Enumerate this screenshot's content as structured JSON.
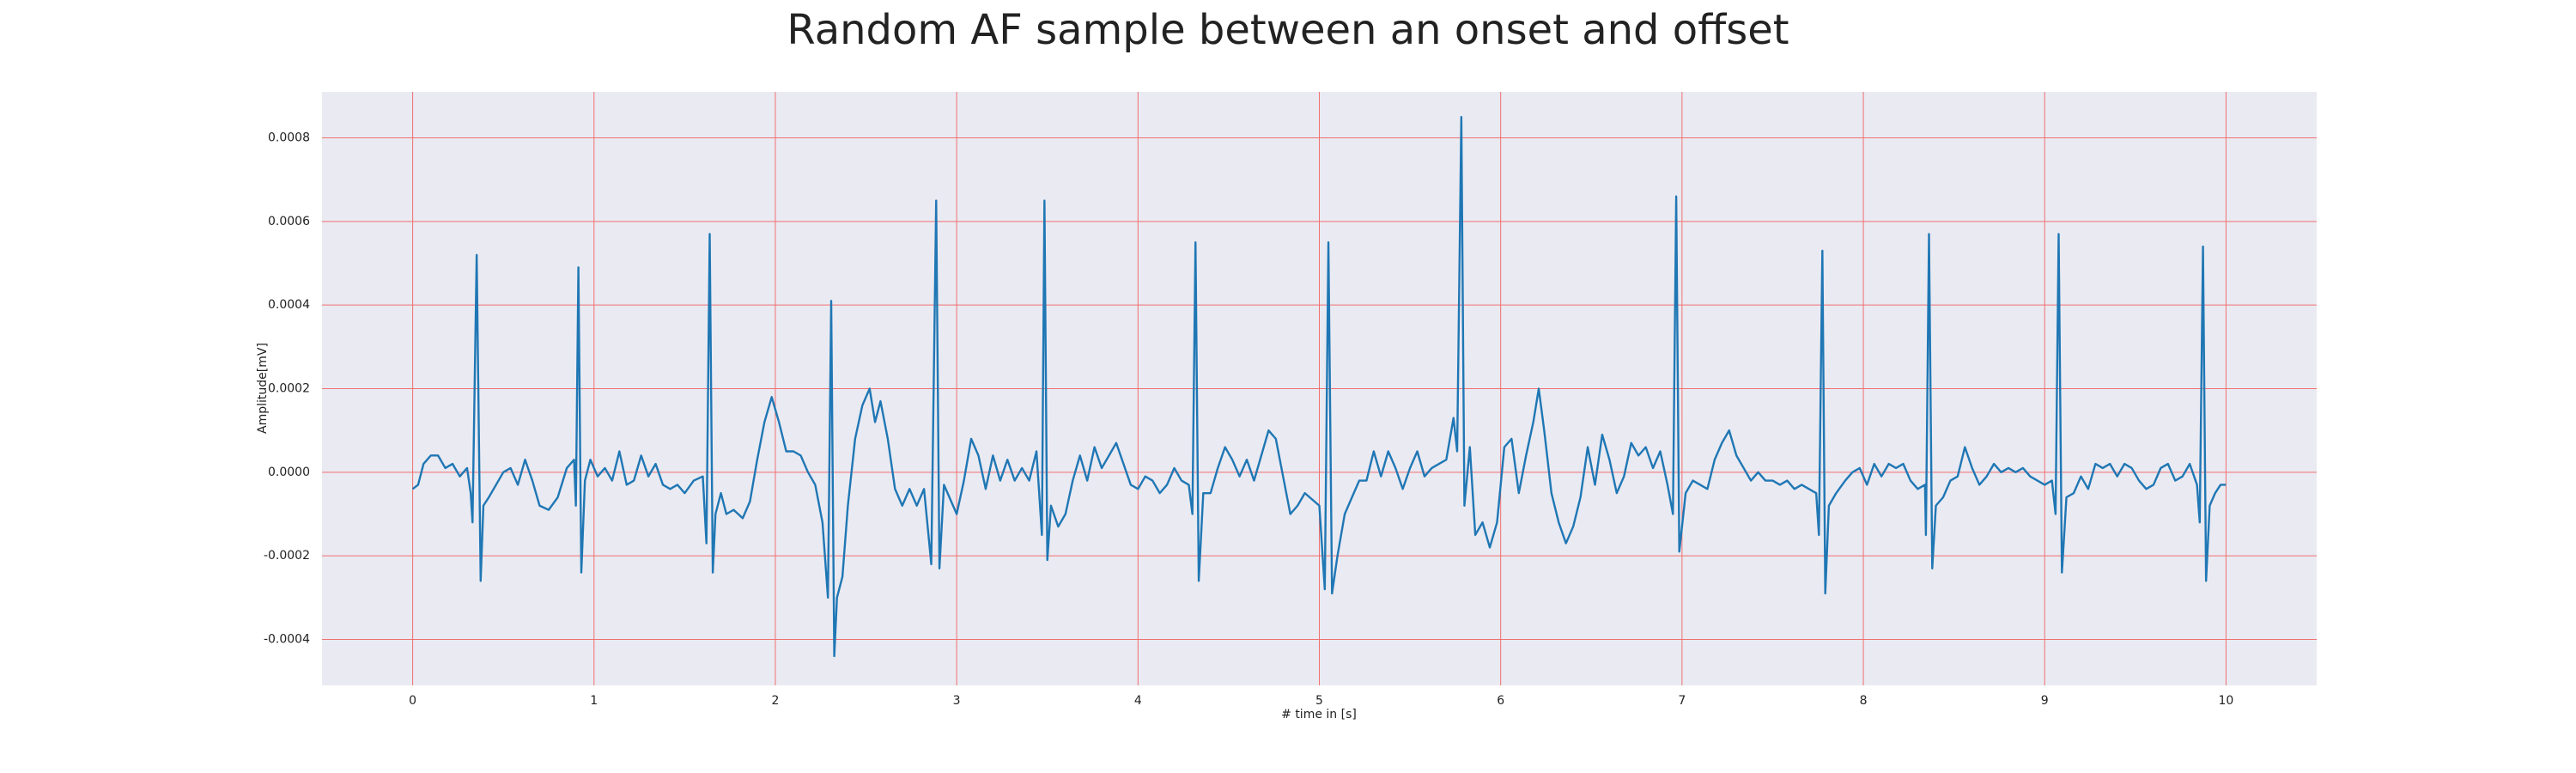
{
  "chart_data": {
    "type": "line",
    "title": "Random AF sample between an onset and offset",
    "xlabel": "# time in [s]",
    "ylabel": "Amplitude[mV]",
    "color": "#1f77b4",
    "grid": true,
    "grid_color": "#f07070",
    "background": "#eaeaf2",
    "xlim": [
      -0.5,
      10.5
    ],
    "xticks": [
      0,
      1,
      2,
      3,
      4,
      5,
      6,
      7,
      8,
      9,
      10
    ],
    "ylim": [
      -0.00051,
      0.00091
    ],
    "yticks": [
      -0.0004,
      -0.0002,
      {
        "value": 0,
        "label": "0.0000"
      },
      0.0002,
      0.0004,
      0.0006,
      0.0008
    ],
    "x": [
      0.0,
      0.03,
      0.06,
      0.1,
      0.14,
      0.18,
      0.22,
      0.26,
      0.3,
      0.32,
      0.33,
      0.353,
      0.375,
      0.39,
      0.42,
      0.46,
      0.5,
      0.54,
      0.58,
      0.62,
      0.66,
      0.7,
      0.75,
      0.8,
      0.85,
      0.89,
      0.9,
      0.914,
      0.93,
      0.95,
      0.98,
      1.02,
      1.06,
      1.1,
      1.14,
      1.18,
      1.22,
      1.26,
      1.3,
      1.34,
      1.38,
      1.42,
      1.46,
      1.5,
      1.55,
      1.6,
      1.62,
      1.638,
      1.655,
      1.67,
      1.7,
      1.73,
      1.77,
      1.82,
      1.86,
      1.9,
      1.94,
      1.98,
      2.02,
      2.06,
      2.1,
      2.14,
      2.18,
      2.22,
      2.26,
      2.29,
      2.308,
      2.325,
      2.34,
      2.37,
      2.4,
      2.44,
      2.48,
      2.52,
      2.55,
      2.58,
      2.62,
      2.66,
      2.7,
      2.74,
      2.78,
      2.82,
      2.86,
      2.887,
      2.905,
      2.93,
      2.96,
      3.0,
      3.04,
      3.08,
      3.12,
      3.16,
      3.2,
      3.24,
      3.28,
      3.32,
      3.36,
      3.4,
      3.44,
      3.47,
      3.484,
      3.5,
      3.52,
      3.56,
      3.6,
      3.64,
      3.68,
      3.72,
      3.76,
      3.8,
      3.84,
      3.88,
      3.92,
      3.96,
      4.0,
      4.04,
      4.08,
      4.12,
      4.16,
      4.2,
      4.24,
      4.28,
      4.3,
      4.317,
      4.335,
      4.36,
      4.4,
      4.44,
      4.48,
      4.52,
      4.56,
      4.6,
      4.64,
      4.68,
      4.72,
      4.76,
      4.8,
      4.84,
      4.88,
      4.92,
      5.0,
      5.03,
      5.05,
      5.07,
      5.1,
      5.14,
      5.18,
      5.22,
      5.26,
      5.3,
      5.34,
      5.38,
      5.42,
      5.46,
      5.5,
      5.54,
      5.58,
      5.62,
      5.66,
      5.7,
      5.74,
      5.76,
      5.783,
      5.8,
      5.83,
      5.86,
      5.9,
      5.94,
      5.98,
      6.02,
      6.06,
      6.1,
      6.14,
      6.18,
      6.21,
      6.24,
      6.28,
      6.32,
      6.36,
      6.4,
      6.44,
      6.48,
      6.52,
      6.56,
      6.6,
      6.64,
      6.68,
      6.72,
      6.76,
      6.8,
      6.84,
      6.88,
      6.92,
      6.95,
      6.968,
      6.985,
      7.02,
      7.06,
      7.1,
      7.14,
      7.18,
      7.22,
      7.26,
      7.3,
      7.34,
      7.38,
      7.42,
      7.46,
      7.5,
      7.54,
      7.58,
      7.62,
      7.66,
      7.7,
      7.74,
      7.755,
      7.774,
      7.79,
      7.81,
      7.85,
      7.9,
      7.94,
      7.98,
      8.02,
      8.06,
      8.1,
      8.14,
      8.18,
      8.22,
      8.26,
      8.3,
      8.34,
      8.345,
      8.362,
      8.38,
      8.4,
      8.44,
      8.48,
      8.52,
      8.56,
      8.6,
      8.64,
      8.68,
      8.72,
      8.76,
      8.8,
      8.84,
      8.88,
      8.92,
      8.96,
      9.0,
      9.04,
      9.06,
      9.077,
      9.095,
      9.12,
      9.16,
      9.2,
      9.24,
      9.28,
      9.32,
      9.36,
      9.4,
      9.44,
      9.48,
      9.52,
      9.56,
      9.6,
      9.64,
      9.68,
      9.72,
      9.76,
      9.8,
      9.84,
      9.855,
      9.873,
      9.89,
      9.91,
      9.94,
      9.97,
      10.0
    ],
    "values": [
      -4e-05,
      -3e-05,
      2e-05,
      4e-05,
      4e-05,
      1e-05,
      2e-05,
      -1e-05,
      1e-05,
      -5e-05,
      -0.00012,
      0.00052,
      -0.00026,
      -8e-05,
      -6e-05,
      -3e-05,
      0,
      1e-05,
      -3e-05,
      3e-05,
      -2e-05,
      -8e-05,
      -9e-05,
      -6e-05,
      1e-05,
      3e-05,
      -8e-05,
      0.00049,
      -0.00024,
      -2e-05,
      3e-05,
      -1e-05,
      1e-05,
      -2e-05,
      5e-05,
      -3e-05,
      -2e-05,
      4e-05,
      -1e-05,
      2e-05,
      -3e-05,
      -4e-05,
      -3e-05,
      -5e-05,
      -2e-05,
      -1e-05,
      -0.00017,
      0.00057,
      -0.00024,
      -0.0001,
      -5e-05,
      -0.0001,
      -9e-05,
      -0.00011,
      -7e-05,
      3e-05,
      0.00012,
      0.00018,
      0.00012,
      5e-05,
      5e-05,
      4e-05,
      0,
      -3e-05,
      -0.00012,
      -0.0003,
      0.00041,
      -0.00044,
      -0.0003,
      -0.00025,
      -8e-05,
      8e-05,
      0.00016,
      0.0002,
      0.00012,
      0.00017,
      8e-05,
      -4e-05,
      -8e-05,
      -4e-05,
      -8e-05,
      -4e-05,
      -0.00022,
      0.00065,
      -0.00023,
      -3e-05,
      -6e-05,
      -0.0001,
      -2e-05,
      8e-05,
      4e-05,
      -4e-05,
      4e-05,
      -2e-05,
      3e-05,
      -2e-05,
      1e-05,
      -2e-05,
      5e-05,
      -0.00015,
      0.00065,
      -0.00021,
      -8e-05,
      -0.00013,
      -0.0001,
      -2e-05,
      4e-05,
      -2e-05,
      6e-05,
      1e-05,
      4e-05,
      7e-05,
      2e-05,
      -3e-05,
      -4e-05,
      -1e-05,
      -2e-05,
      -5e-05,
      -3e-05,
      1e-05,
      -2e-05,
      -3e-05,
      -0.0001,
      0.00055,
      -0.00026,
      -5e-05,
      -5e-05,
      1e-05,
      6e-05,
      3e-05,
      -1e-05,
      3e-05,
      -2e-05,
      4e-05,
      0.0001,
      8e-05,
      -1e-05,
      -0.0001,
      -8e-05,
      -5e-05,
      -8e-05,
      -0.00028,
      0.00055,
      -0.00029,
      -0.0002,
      -0.0001,
      -6e-05,
      -2e-05,
      -2e-05,
      5e-05,
      -1e-05,
      5e-05,
      1e-05,
      -4e-05,
      1e-05,
      5e-05,
      -1e-05,
      1e-05,
      2e-05,
      3e-05,
      0.00013,
      5e-05,
      0.00085,
      -8e-05,
      6e-05,
      -0.00015,
      -0.00012,
      -0.00018,
      -0.00012,
      6e-05,
      8e-05,
      -5e-05,
      4e-05,
      0.00012,
      0.0002,
      0.0001,
      -5e-05,
      -0.00012,
      -0.00017,
      -0.00013,
      -6e-05,
      6e-05,
      -3e-05,
      9e-05,
      3e-05,
      -5e-05,
      -1e-05,
      7e-05,
      4e-05,
      6e-05,
      1e-05,
      5e-05,
      -3e-05,
      -0.0001,
      0.00066,
      -0.00019,
      -5e-05,
      -2e-05,
      -3e-05,
      -4e-05,
      3e-05,
      7e-05,
      0.0001,
      4e-05,
      1e-05,
      -2e-05,
      0,
      -2e-05,
      -2e-05,
      -3e-05,
      -2e-05,
      -4e-05,
      -3e-05,
      -4e-05,
      -5e-05,
      -0.00015,
      0.00053,
      -0.00029,
      -8e-05,
      -5e-05,
      -2e-05,
      0,
      1e-05,
      -3e-05,
      2e-05,
      -1e-05,
      2e-05,
      1e-05,
      2e-05,
      -2e-05,
      -4e-05,
      -3e-05,
      -0.00015,
      0.00057,
      -0.00023,
      -8e-05,
      -6e-05,
      -2e-05,
      -1e-05,
      6e-05,
      1e-05,
      -3e-05,
      -1e-05,
      2e-05,
      0,
      1e-05,
      0,
      1e-05,
      -1e-05,
      -2e-05,
      -3e-05,
      -2e-05,
      -0.0001,
      0.00057,
      -0.00024,
      -6e-05,
      -5e-05,
      -1e-05,
      -4e-05,
      2e-05,
      1e-05,
      2e-05,
      -1e-05,
      2e-05,
      1e-05,
      -2e-05,
      -4e-05,
      -3e-05,
      1e-05,
      2e-05,
      -2e-05,
      -1e-05,
      2e-05,
      -3e-05,
      -0.00012,
      0.00054,
      -0.00026,
      -8e-05,
      -5e-05,
      -3e-05,
      -3e-05
    ]
  }
}
